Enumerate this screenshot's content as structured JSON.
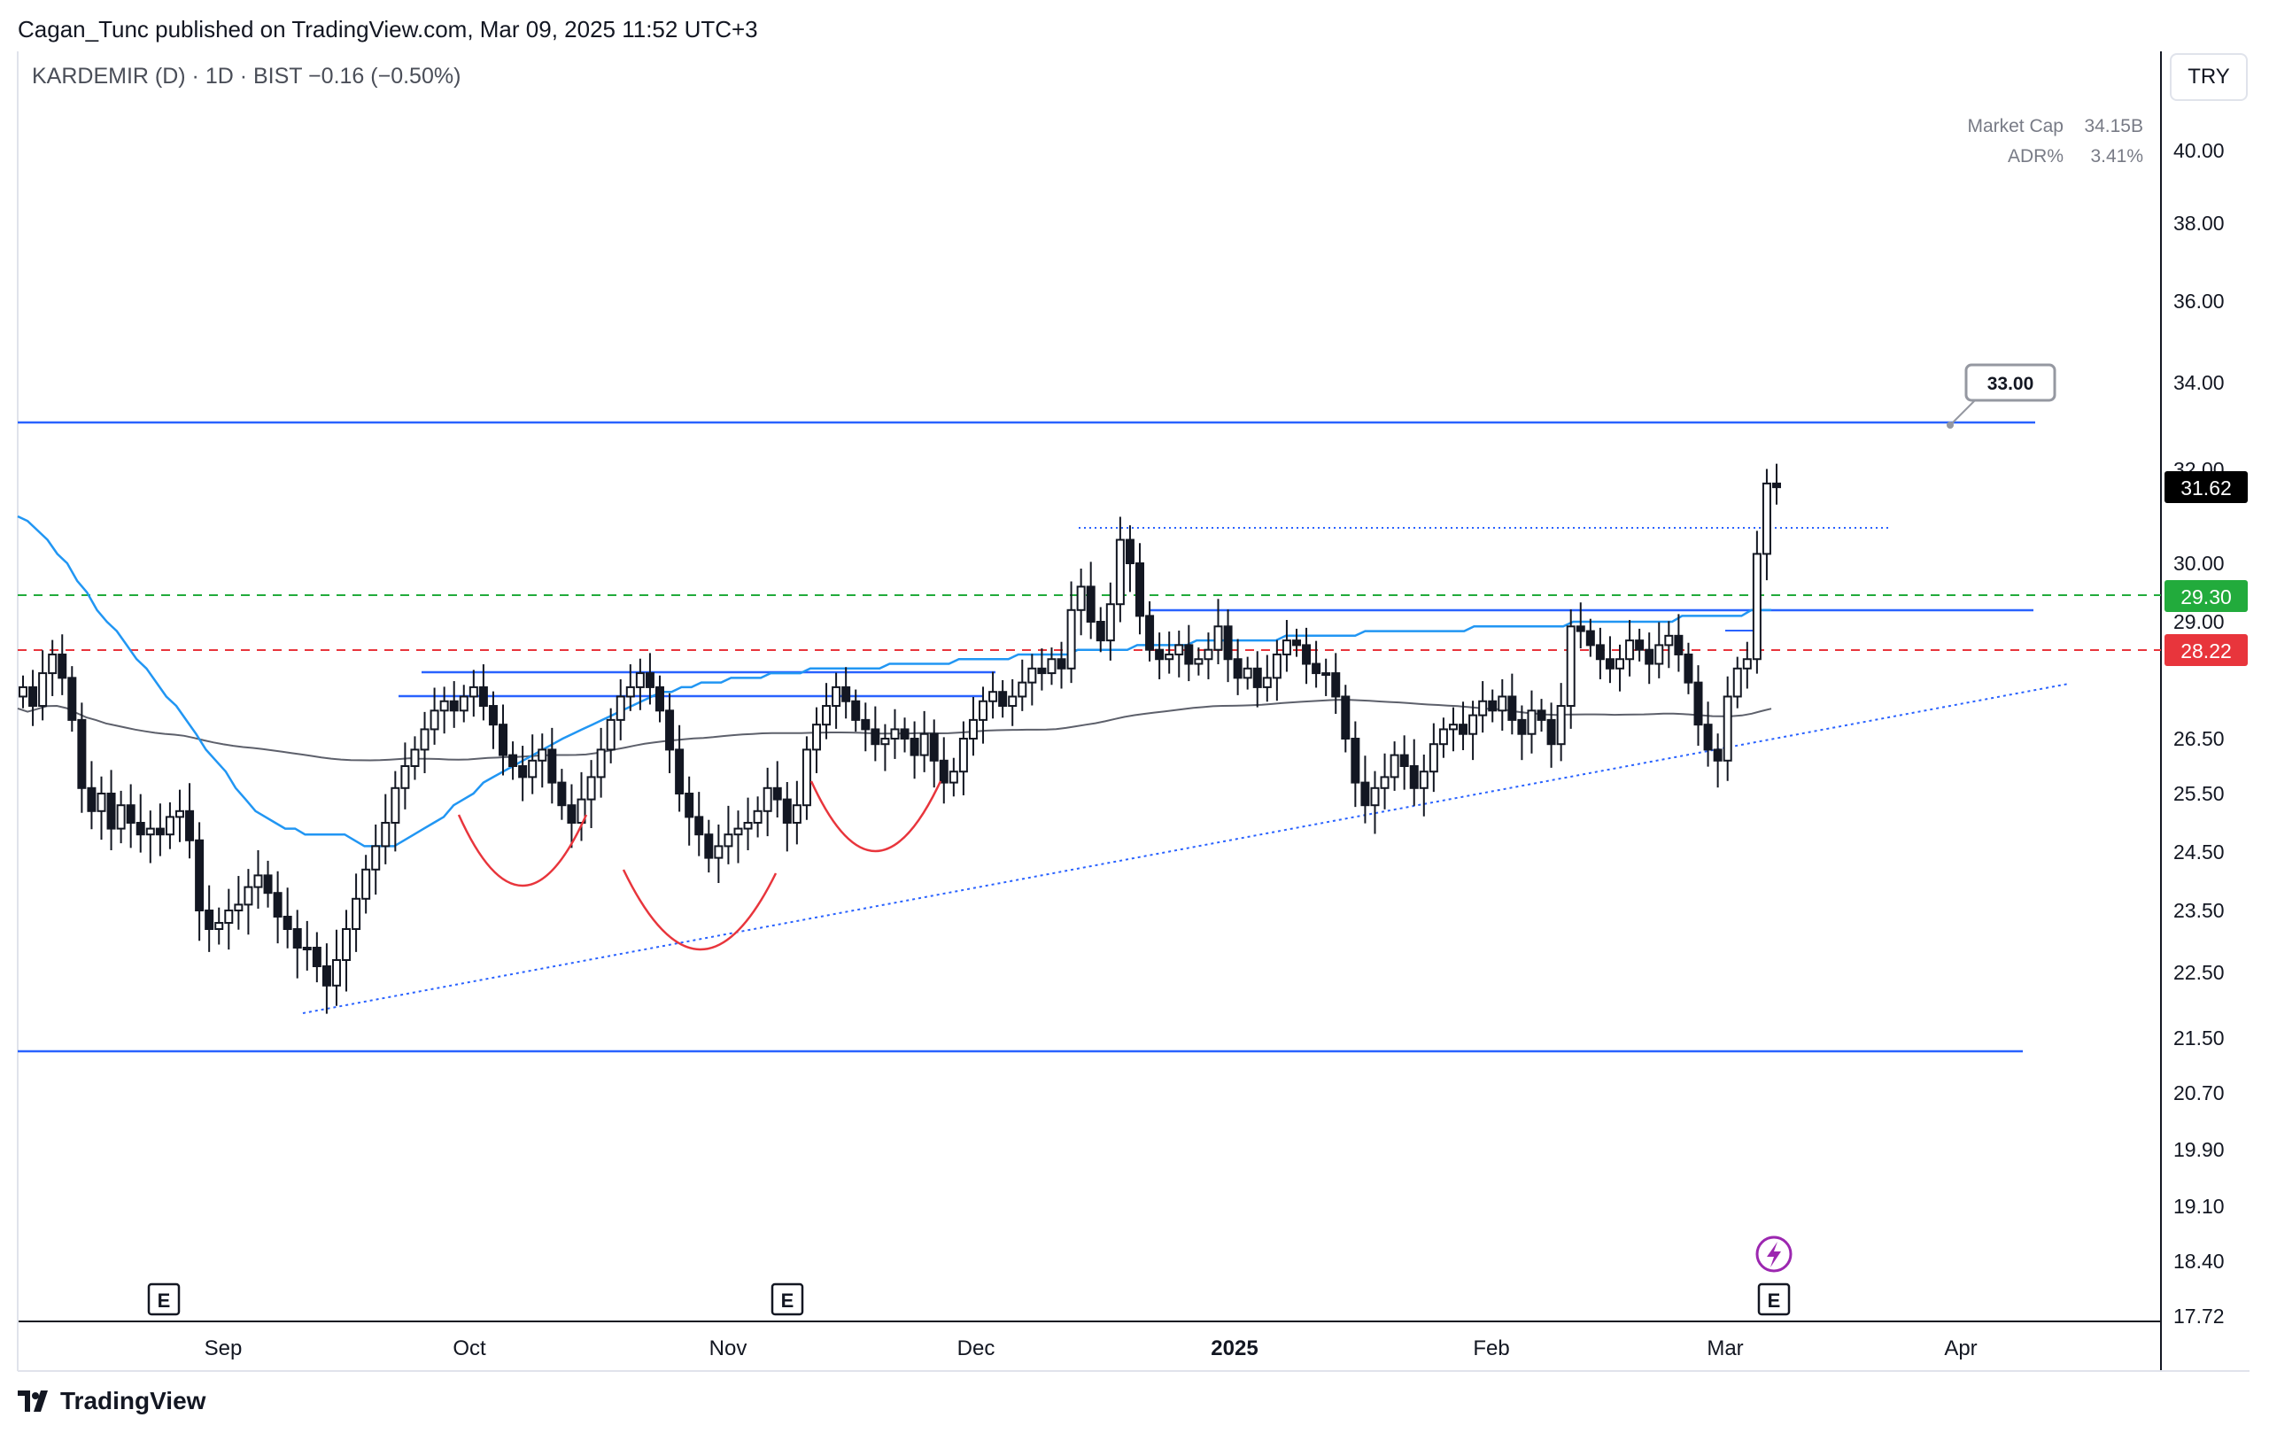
{
  "header": {
    "published": "Cagan_Tunc published on TradingView.com, Mar 09, 2025 11:52 UTC+3",
    "symbol_line": "KARDEMIR (D) · 1D · BIST  −0.16 (−0.50%)",
    "stats": [
      {
        "label": "Market Cap",
        "value": "34.15B"
      },
      {
        "label": "ADR%",
        "value": "3.41%"
      }
    ],
    "currency": "TRY"
  },
  "footer": {
    "brand": "TradingView"
  },
  "chart_data": {
    "type": "candlestick",
    "y_axis_ticks": [
      "40.00",
      "38.00",
      "36.00",
      "34.00",
      "32.00",
      "30.00",
      "29.00",
      "26.50",
      "25.50",
      "24.50",
      "23.50",
      "22.50",
      "21.50",
      "20.70",
      "19.90",
      "19.10",
      "18.40",
      "17.72"
    ],
    "x_axis_ticks": [
      {
        "label": "Sep",
        "bold": false
      },
      {
        "label": "Oct",
        "bold": false
      },
      {
        "label": "Nov",
        "bold": false
      },
      {
        "label": "Dec",
        "bold": false
      },
      {
        "label": "2025",
        "bold": true
      },
      {
        "label": "Feb",
        "bold": false
      },
      {
        "label": "Mar",
        "bold": false
      },
      {
        "label": "Apr",
        "bold": false
      }
    ],
    "price_badges": [
      {
        "value": "31.62",
        "color": "#000000"
      },
      {
        "value": "29.30",
        "color": "#22ab3c"
      },
      {
        "value": "28.22",
        "color": "#e8353c"
      }
    ],
    "annotation_label": "33.00",
    "earnings_markers": [
      "E",
      "E",
      "E"
    ],
    "series": {
      "close": [
        27.6,
        27.2,
        27.9,
        28.3,
        27.8,
        26.9,
        25.6,
        25.2,
        25.5,
        24.9,
        25.3,
        25.0,
        24.8,
        24.9,
        24.8,
        25.1,
        25.2,
        24.7,
        23.5,
        23.2,
        23.3,
        23.5,
        23.6,
        23.9,
        24.1,
        23.8,
        23.4,
        23.2,
        22.9,
        22.9,
        22.6,
        22.3,
        22.7,
        23.2,
        23.7,
        24.2,
        24.6,
        25.0,
        25.6,
        26.0,
        26.3,
        26.7,
        27.1,
        27.3,
        27.1,
        27.4,
        27.6,
        27.2,
        26.8,
        26.2,
        26.0,
        25.8,
        26.1,
        26.3,
        25.7,
        25.3,
        25.0,
        25.4,
        25.8,
        26.3,
        26.9,
        27.4,
        27.6,
        27.9,
        27.6,
        27.1,
        26.3,
        25.5,
        25.1,
        24.8,
        24.4,
        24.6,
        24.8,
        24.9,
        25.0,
        25.2,
        25.6,
        25.4,
        25.0,
        25.3,
        26.3,
        26.8,
        27.2,
        27.6,
        27.3,
        26.9,
        26.7,
        26.4,
        26.5,
        26.7,
        26.5,
        26.2,
        26.6,
        26.1,
        25.7,
        25.9,
        26.5,
        26.9,
        27.3,
        27.5,
        27.2,
        27.4,
        27.7,
        28.0,
        27.9,
        28.2,
        28.0,
        29.2,
        29.6,
        29.0,
        28.6,
        29.3,
        30.5,
        30.0,
        29.1,
        28.4,
        28.2,
        28.3,
        28.5,
        28.1,
        28.2,
        28.4,
        28.9,
        28.2,
        27.8,
        28.0,
        27.6,
        27.8,
        28.3,
        28.6,
        28.5,
        28.1,
        27.9,
        27.9,
        27.4,
        26.5,
        25.7,
        25.3,
        25.6,
        25.8,
        26.2,
        26.0,
        25.6,
        25.9,
        26.4,
        26.7,
        26.8,
        26.6,
        27.0,
        27.3,
        27.1,
        27.4,
        26.9,
        26.6,
        27.1,
        26.9,
        26.4,
        27.2,
        28.9,
        28.8,
        28.5,
        28.2,
        28.0,
        28.2,
        28.6,
        28.4,
        28.1,
        28.5,
        28.7,
        28.3,
        27.7,
        26.8,
        26.3,
        26.1,
        27.4,
        28.0,
        28.2,
        30.2,
        31.7,
        31.62
      ],
      "ema_fast": [
        31.0,
        30.9,
        30.7,
        30.5,
        30.2,
        30.0,
        29.7,
        29.5,
        29.2,
        29.0,
        28.8,
        28.5,
        28.2,
        28.0,
        27.7,
        27.4,
        27.2,
        26.9,
        26.6,
        26.3,
        26.1,
        25.9,
        25.6,
        25.4,
        25.2,
        25.1,
        25.0,
        24.9,
        24.9,
        24.8,
        24.8,
        24.8,
        24.8,
        24.8,
        24.7,
        24.6,
        24.6,
        24.6,
        24.6,
        24.7,
        24.8,
        24.9,
        25.0,
        25.1,
        25.3,
        25.4,
        25.5,
        25.7,
        25.8,
        25.9,
        26.0,
        26.1,
        26.2,
        26.3,
        26.4,
        26.5,
        26.6,
        26.7,
        26.8,
        26.9,
        27.0,
        27.1,
        27.2,
        27.3,
        27.4,
        27.5,
        27.5,
        27.6,
        27.6,
        27.7,
        27.7,
        27.7,
        27.8,
        27.8,
        27.8,
        27.8,
        27.9,
        27.9,
        27.9,
        27.9,
        28.0,
        28.0,
        28.0,
        28.0,
        28.0,
        28.0,
        28.0,
        28.0,
        28.1,
        28.1,
        28.1,
        28.1,
        28.1,
        28.1,
        28.1,
        28.2,
        28.2,
        28.2,
        28.2,
        28.2,
        28.2,
        28.3,
        28.3,
        28.3,
        28.3,
        28.3,
        28.3,
        28.4,
        28.4,
        28.4,
        28.4,
        28.4,
        28.4,
        28.5,
        28.5,
        28.5,
        28.5,
        28.5,
        28.5,
        28.6,
        28.6,
        28.6,
        28.6,
        28.6,
        28.6,
        28.6,
        28.6,
        28.6,
        28.7,
        28.7,
        28.7,
        28.7,
        28.7,
        28.7,
        28.7,
        28.7,
        28.8,
        28.8,
        28.8,
        28.8,
        28.8,
        28.8,
        28.8,
        28.8,
        28.8,
        28.8,
        28.8,
        28.9,
        28.9,
        28.9,
        28.9,
        28.9,
        28.9,
        28.9,
        28.9,
        28.9,
        28.9,
        29.0,
        29.0,
        29.0,
        29.0,
        29.0,
        29.0,
        29.0,
        29.0,
        29.0,
        29.0,
        29.0,
        29.1,
        29.1,
        29.1,
        29.1,
        29.1,
        29.1,
        29.1,
        29.2,
        29.2,
        29.2
      ]
    }
  }
}
